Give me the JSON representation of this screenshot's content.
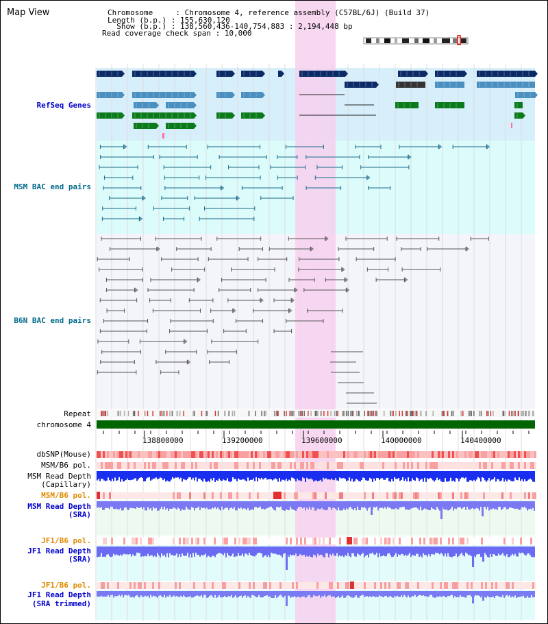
{
  "panel_title": "Map View",
  "info": {
    "chromosome": "Chromosome     : Chromosome 4, reference assembly (C57BL/6J) (Build 37)",
    "length": "Length (b.p.) : 155,630,120",
    "show": "  Show (b.p.) : 138,560,436-140,754,883 : 2,194,448 bp",
    "coverage": "Read coverage check span : 10,000"
  },
  "tracks": {
    "refseq": "RefSeq Genes",
    "msm_bac": "MSM BAC end pairs",
    "b6n_bac": "B6N BAC end pairs",
    "repeat": "Repeat",
    "chromosome": "chromosome 4",
    "dbsnp": "dbSNP(Mouse)",
    "msm_b6_pol_1": "MSM/B6 pol.",
    "msm_read_depth_cap_1": "MSM Read Depth",
    "msm_read_depth_cap_2": "(Capillary)",
    "msm_b6_pol_2": "MSM/B6 pol.",
    "msm_read_depth_sra_1": "MSM Read Depth",
    "msm_read_depth_sra_2": "(SRA)",
    "jf1_b6_pol_1": "JF1/B6 pol.",
    "jf1_read_depth_1": "JF1 Read Depth",
    "jf1_read_depth_2": "(SRA)",
    "jf1_b6_pol_2": "JF1/B6 pol.",
    "jf1_read_depth_trim_1": "JF1 Read Depth",
    "jf1_read_depth_trim_2": "(SRA trimmed)"
  },
  "axis": {
    "ticks": [
      "138800000",
      "139200000",
      "139600000",
      "140000000",
      "140400000"
    ]
  },
  "colors": {
    "refseq_dark": "#0b2a66",
    "refseq_mid": "#4a8fc0",
    "refseq_green": "#0b7a1a",
    "msm_line": "#1a6a8a",
    "b6n_line": "#555555",
    "highlight": "#f7d0ef",
    "label_blue": "#0000cc",
    "label_orange": "#e08a00",
    "label_teal": "#006a8a"
  }
}
